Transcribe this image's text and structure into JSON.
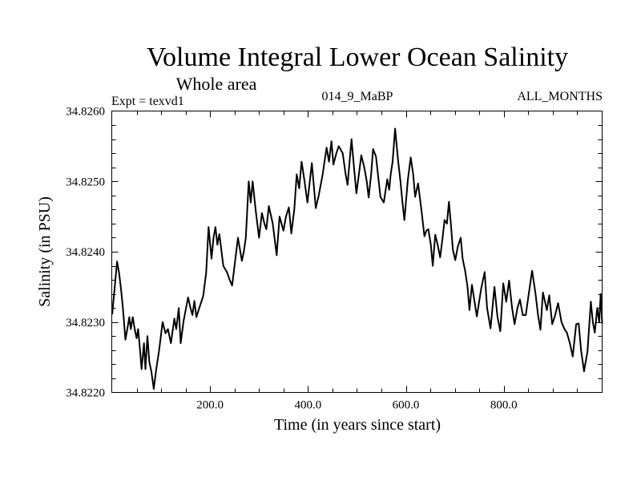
{
  "chart_data": {
    "type": "line",
    "title": "Volume Integral Lower Ocean Salinity",
    "subtitle": "Whole area",
    "annotations": {
      "left": "Expt = texvd1",
      "center": "014_9_MaBP",
      "right": "ALL_MONTHS"
    },
    "xlabel": "Time (in years since start)",
    "ylabel": "Salinity (in PSU)",
    "xlim": [
      0,
      1001
    ],
    "ylim": [
      34.822,
      34.826
    ],
    "x_major_ticks": [
      200,
      400,
      600,
      800
    ],
    "x_tick_labels": [
      "200.0",
      "400.0",
      "600.0",
      "800.0"
    ],
    "x_minor_step": 50,
    "y_major_ticks": [
      34.822,
      34.823,
      34.824,
      34.825,
      34.826
    ],
    "y_tick_labels": [
      "34.8220",
      "34.8230",
      "34.8240",
      "34.8250",
      "34.8260"
    ],
    "y_minor_step": 0.0002,
    "grid": false,
    "legend": "none",
    "series": [
      {
        "name": "Salinity",
        "color": "#000000",
        "x": [
          0,
          4,
          10,
          14,
          18,
          22,
          27,
          31,
          35,
          38,
          42,
          46,
          50,
          53,
          57,
          60,
          65,
          68,
          72,
          76,
          80,
          85,
          90,
          96,
          103,
          109,
          114,
          120,
          127,
          131,
          136,
          140,
          146,
          155,
          160,
          164,
          168,
          172,
          178,
          186,
          192,
          197,
          203,
          207,
          211,
          215,
          219,
          227,
          235,
          240,
          245,
          250,
          257,
          265,
          269,
          273,
          279,
          283,
          287,
          293,
          300,
          306,
          311,
          315,
          320,
          328,
          336,
          342,
          350,
          355,
          361,
          366,
          372,
          377,
          382,
          387,
          393,
          399,
          408,
          416,
          422,
          430,
          438,
          443,
          448,
          452,
          458,
          463,
          471,
          477,
          481,
          489,
          494,
          499,
          504,
          509,
          515,
          520,
          524,
          529,
          533,
          539,
          543,
          548,
          555,
          562,
          566,
          569,
          573,
          578,
          584,
          589,
          593,
          597,
          604,
          610,
          615,
          619,
          625,
          632,
          638,
          642,
          646,
          651,
          655,
          660,
          665,
          670,
          675,
          679,
          684,
          688,
          692,
          696,
          701,
          706,
          712,
          716,
          721,
          726,
          730,
          735,
          740,
          745,
          754,
          761,
          766,
          773,
          781,
          787,
          793,
          799,
          805,
          811,
          817,
          822,
          828,
          833,
          839,
          845,
          851,
          858,
          865,
          870,
          875,
          880,
          888,
          893,
          899,
          905,
          911,
          918,
          924,
          929,
          935,
          941,
          948,
          953,
          958,
          964,
          971,
          978,
          982,
          986,
          991,
          995,
          998,
          1001
        ],
        "y": [
          34.82311,
          34.8234,
          34.82386,
          34.8237,
          34.82347,
          34.8232,
          34.82275,
          34.8229,
          34.82307,
          34.8229,
          34.82307,
          34.8229,
          34.82277,
          34.8229,
          34.8226,
          34.82233,
          34.8227,
          34.82233,
          34.8228,
          34.82243,
          34.8223,
          34.82205,
          34.82233,
          34.8226,
          34.823,
          34.82284,
          34.8229,
          34.8227,
          34.82305,
          34.8229,
          34.8232,
          34.8227,
          34.82302,
          34.82335,
          34.8232,
          34.8231,
          34.8233,
          34.82307,
          34.8232,
          34.82337,
          34.8237,
          34.82435,
          34.8239,
          34.8242,
          34.82435,
          34.8241,
          34.82425,
          34.8238,
          34.8237,
          34.8236,
          34.82352,
          34.8238,
          34.8242,
          34.82387,
          34.824,
          34.8242,
          34.825,
          34.8247,
          34.825,
          34.8246,
          34.8242,
          34.82455,
          34.8244,
          34.82432,
          34.82465,
          34.8244,
          34.82395,
          34.8245,
          34.8243,
          34.8245,
          34.82463,
          34.82426,
          34.8246,
          34.8251,
          34.8249,
          34.82528,
          34.825,
          34.8247,
          34.82526,
          34.82462,
          34.8248,
          34.8251,
          34.82548,
          34.82528,
          34.82557,
          34.82524,
          34.8254,
          34.8255,
          34.8254,
          34.8251,
          34.82495,
          34.8256,
          34.8252,
          34.82483,
          34.8251,
          34.82537,
          34.8252,
          34.825,
          34.82477,
          34.8251,
          34.82546,
          34.82535,
          34.8251,
          34.82478,
          34.8247,
          34.82503,
          34.82488,
          34.8251,
          34.82528,
          34.82575,
          34.8253,
          34.825,
          34.8247,
          34.82445,
          34.82502,
          34.82534,
          34.8251,
          34.82478,
          34.82497,
          34.82458,
          34.82422,
          34.8243,
          34.82432,
          34.8241,
          34.8238,
          34.82424,
          34.8241,
          34.82392,
          34.8242,
          34.82445,
          34.8244,
          34.82471,
          34.8244,
          34.82403,
          34.82388,
          34.82407,
          34.8242,
          34.8239,
          34.82373,
          34.8235,
          34.82317,
          34.82353,
          34.8233,
          34.82308,
          34.82348,
          34.82371,
          34.8232,
          34.82291,
          34.8235,
          34.82308,
          34.82287,
          34.82355,
          34.82329,
          34.82359,
          34.8232,
          34.82297,
          34.8232,
          34.82332,
          34.8231,
          34.8231,
          34.8234,
          34.82373,
          34.8234,
          34.8231,
          34.82289,
          34.82342,
          34.82317,
          34.82338,
          34.82297,
          34.8231,
          34.82327,
          34.823,
          34.8229,
          34.82285,
          34.8227,
          34.82251,
          34.82297,
          34.82298,
          34.8226,
          34.8223,
          34.82258,
          34.82329,
          34.823,
          34.82285,
          34.8232,
          34.823,
          34.8234,
          34.82298
        ]
      }
    ]
  }
}
